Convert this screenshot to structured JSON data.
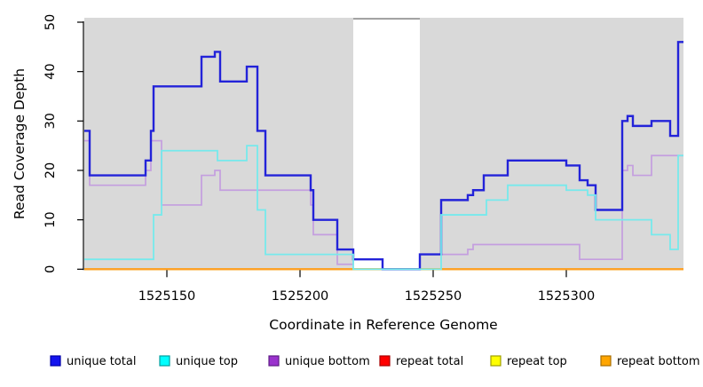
{
  "chart_data": {
    "type": "line",
    "subtype": "step-coverage",
    "title": "",
    "xlabel": "Coordinate in Reference Genome",
    "ylabel": "Read Coverage Depth",
    "xlim": [
      1525119,
      1525344
    ],
    "ylim": [
      0,
      50
    ],
    "x_ticks": [
      1525150,
      1525200,
      1525250,
      1525300
    ],
    "y_ticks": [
      0,
      10,
      20,
      30,
      40,
      50
    ],
    "background": {
      "page": "#ffffff",
      "plot": "#d9d9d9",
      "gap_fill": "#ffffff",
      "gap_top_border": "#949494"
    },
    "gap_region": {
      "x_start": 1525220,
      "x_end": 1525245
    },
    "series": [
      {
        "name": "repeat total",
        "color": "#DD0000",
        "width": 2,
        "steps": [
          [
            1525119,
            0
          ]
        ],
        "end": 1525344
      },
      {
        "name": "repeat top",
        "color": "#FFFF00",
        "width": 2,
        "steps": [
          [
            1525119,
            0
          ]
        ],
        "end": 1525344
      },
      {
        "name": "repeat bottom",
        "color": "#FF9E27",
        "width": 2,
        "steps": [
          [
            1525119,
            0
          ]
        ],
        "end": 1525344
      },
      {
        "name": "unique bottom",
        "color": "#C49EDF",
        "width": 1.7,
        "steps": [
          [
            1525119,
            26
          ],
          [
            1525121,
            17
          ],
          [
            1525142,
            20
          ],
          [
            1525144,
            26
          ],
          [
            1525148,
            13
          ],
          [
            1525163,
            19
          ],
          [
            1525168,
            20
          ],
          [
            1525170,
            16
          ],
          [
            1525204,
            13
          ],
          [
            1525205,
            7
          ],
          [
            1525214,
            1
          ],
          [
            1525220,
            2
          ],
          [
            1525231,
            0
          ],
          [
            1525245,
            3
          ],
          [
            1525263,
            4
          ],
          [
            1525265,
            5
          ],
          [
            1525305,
            2
          ],
          [
            1525321,
            20
          ],
          [
            1525323,
            21
          ],
          [
            1525325,
            19
          ],
          [
            1525332,
            23
          ]
        ],
        "end": 1525344
      },
      {
        "name": "unique total",
        "color": "#2323D9",
        "width": 2.4,
        "steps": [
          [
            1525119,
            28
          ],
          [
            1525121,
            19
          ],
          [
            1525142,
            22
          ],
          [
            1525144,
            28
          ],
          [
            1525145,
            37
          ],
          [
            1525163,
            43
          ],
          [
            1525168,
            44
          ],
          [
            1525170,
            38
          ],
          [
            1525180,
            41
          ],
          [
            1525184,
            28
          ],
          [
            1525187,
            19
          ],
          [
            1525204,
            16
          ],
          [
            1525205,
            10
          ],
          [
            1525214,
            4
          ],
          [
            1525220,
            2
          ],
          [
            1525231,
            0
          ],
          [
            1525245,
            3
          ],
          [
            1525253,
            14
          ],
          [
            1525263,
            15
          ],
          [
            1525265,
            16
          ],
          [
            1525269,
            19
          ],
          [
            1525278,
            22
          ],
          [
            1525300,
            21
          ],
          [
            1525305,
            18
          ],
          [
            1525308,
            17
          ],
          [
            1525311,
            12
          ],
          [
            1525321,
            30
          ],
          [
            1525323,
            31
          ],
          [
            1525325,
            29
          ],
          [
            1525332,
            30
          ],
          [
            1525339,
            27
          ],
          [
            1525342,
            46
          ]
        ],
        "end": 1525344
      },
      {
        "name": "unique top",
        "color": "#76E9EC",
        "width": 1.8,
        "steps": [
          [
            1525119,
            2
          ],
          [
            1525145,
            11
          ],
          [
            1525148,
            24
          ],
          [
            1525169,
            22
          ],
          [
            1525180,
            25
          ],
          [
            1525184,
            12
          ],
          [
            1525187,
            3
          ],
          [
            1525220,
            0
          ],
          [
            1525253,
            11
          ],
          [
            1525270,
            14
          ],
          [
            1525278,
            17
          ],
          [
            1525300,
            16
          ],
          [
            1525308,
            15
          ],
          [
            1525311,
            10
          ],
          [
            1525332,
            7
          ],
          [
            1525339,
            4
          ],
          [
            1525342,
            23
          ]
        ],
        "end": 1525344
      }
    ],
    "legend": {
      "position": "bottom",
      "items": [
        {
          "label": "unique total",
          "fill": "#1414EE",
          "border": "#0000A8"
        },
        {
          "label": "unique top",
          "fill": "#00FFFF",
          "border": "#009E9E"
        },
        {
          "label": "unique bottom",
          "fill": "#9A32CD",
          "border": "#5E1C86"
        },
        {
          "label": "repeat total",
          "fill": "#FF0000",
          "border": "#A80000"
        },
        {
          "label": "repeat top",
          "fill": "#FFFF00",
          "border": "#9E9E00"
        },
        {
          "label": "repeat bottom",
          "fill": "#FFA500",
          "border": "#A86E00"
        }
      ]
    }
  }
}
